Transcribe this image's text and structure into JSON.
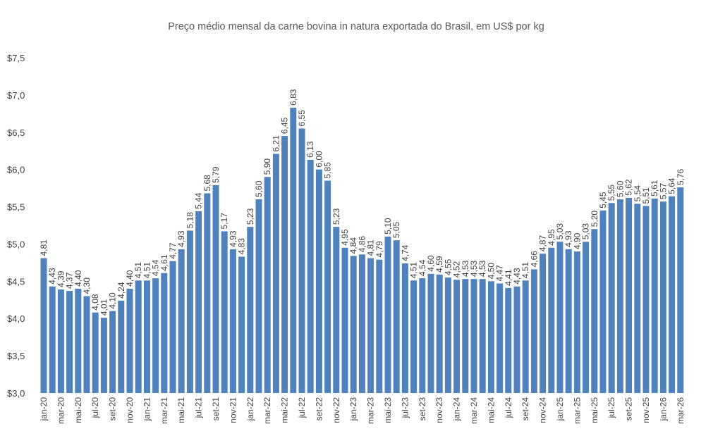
{
  "chart_data": {
    "type": "bar",
    "title": "Preço médio mensal da carne bovina in natura exportada do Brasil, em US$ por kg",
    "xlabel": "",
    "ylabel": "",
    "ylim": [
      3.0,
      7.5
    ],
    "y_ticks": [
      "$3,0",
      "$3,5",
      "$4,0",
      "$4,5",
      "$5,0",
      "$5,5",
      "$6,0",
      "$6,5",
      "$7,0",
      "$7,5"
    ],
    "y_tick_values": [
      3.0,
      3.5,
      4.0,
      4.5,
      5.0,
      5.5,
      6.0,
      6.5,
      7.0,
      7.5
    ],
    "x_tick_labels": [
      "jan-20",
      "mar-20",
      "mai-20",
      "jul-20",
      "set-20",
      "nov-20",
      "jan-21",
      "mar-21",
      "mai-21",
      "jul-21",
      "set-21",
      "nov-21",
      "jan-22",
      "mar-22",
      "mai-22",
      "jul-22",
      "set-22",
      "nov-22",
      "jan-23",
      "mar-23",
      "mai-23",
      "jul-23",
      "set-23",
      "nov-23",
      "jan-24",
      "mar-24",
      "mai-24",
      "jul-24",
      "set-24",
      "nov-24",
      "jan-25",
      "mar-25",
      "mai-25",
      "jul-25",
      "set-25",
      "nov-25",
      "jan-26",
      "mar-26"
    ],
    "values": [
      4.81,
      4.43,
      4.39,
      4.37,
      4.4,
      4.3,
      4.08,
      4.01,
      4.1,
      4.24,
      4.4,
      4.51,
      4.51,
      4.54,
      4.61,
      4.77,
      4.93,
      5.18,
      5.44,
      5.68,
      5.79,
      5.17,
      4.93,
      4.83,
      5.23,
      5.6,
      5.9,
      6.21,
      6.45,
      6.83,
      6.55,
      6.13,
      6.0,
      5.85,
      5.23,
      4.95,
      4.84,
      4.86,
      4.81,
      4.79,
      5.1,
      5.05,
      4.74,
      4.51,
      4.54,
      4.6,
      4.59,
      4.55,
      4.52,
      4.53,
      4.53,
      4.53,
      4.5,
      4.47,
      4.41,
      4.43,
      4.51,
      4.66,
      4.87,
      4.95,
      5.03,
      4.93,
      4.9,
      5.03,
      5.2,
      5.45,
      5.55,
      5.6,
      5.62,
      5.54,
      5.51,
      5.61,
      5.57,
      5.64,
      5.76
    ],
    "data_labels": true,
    "grid": false,
    "legend": "none",
    "bar_color": "#4f81bd"
  }
}
